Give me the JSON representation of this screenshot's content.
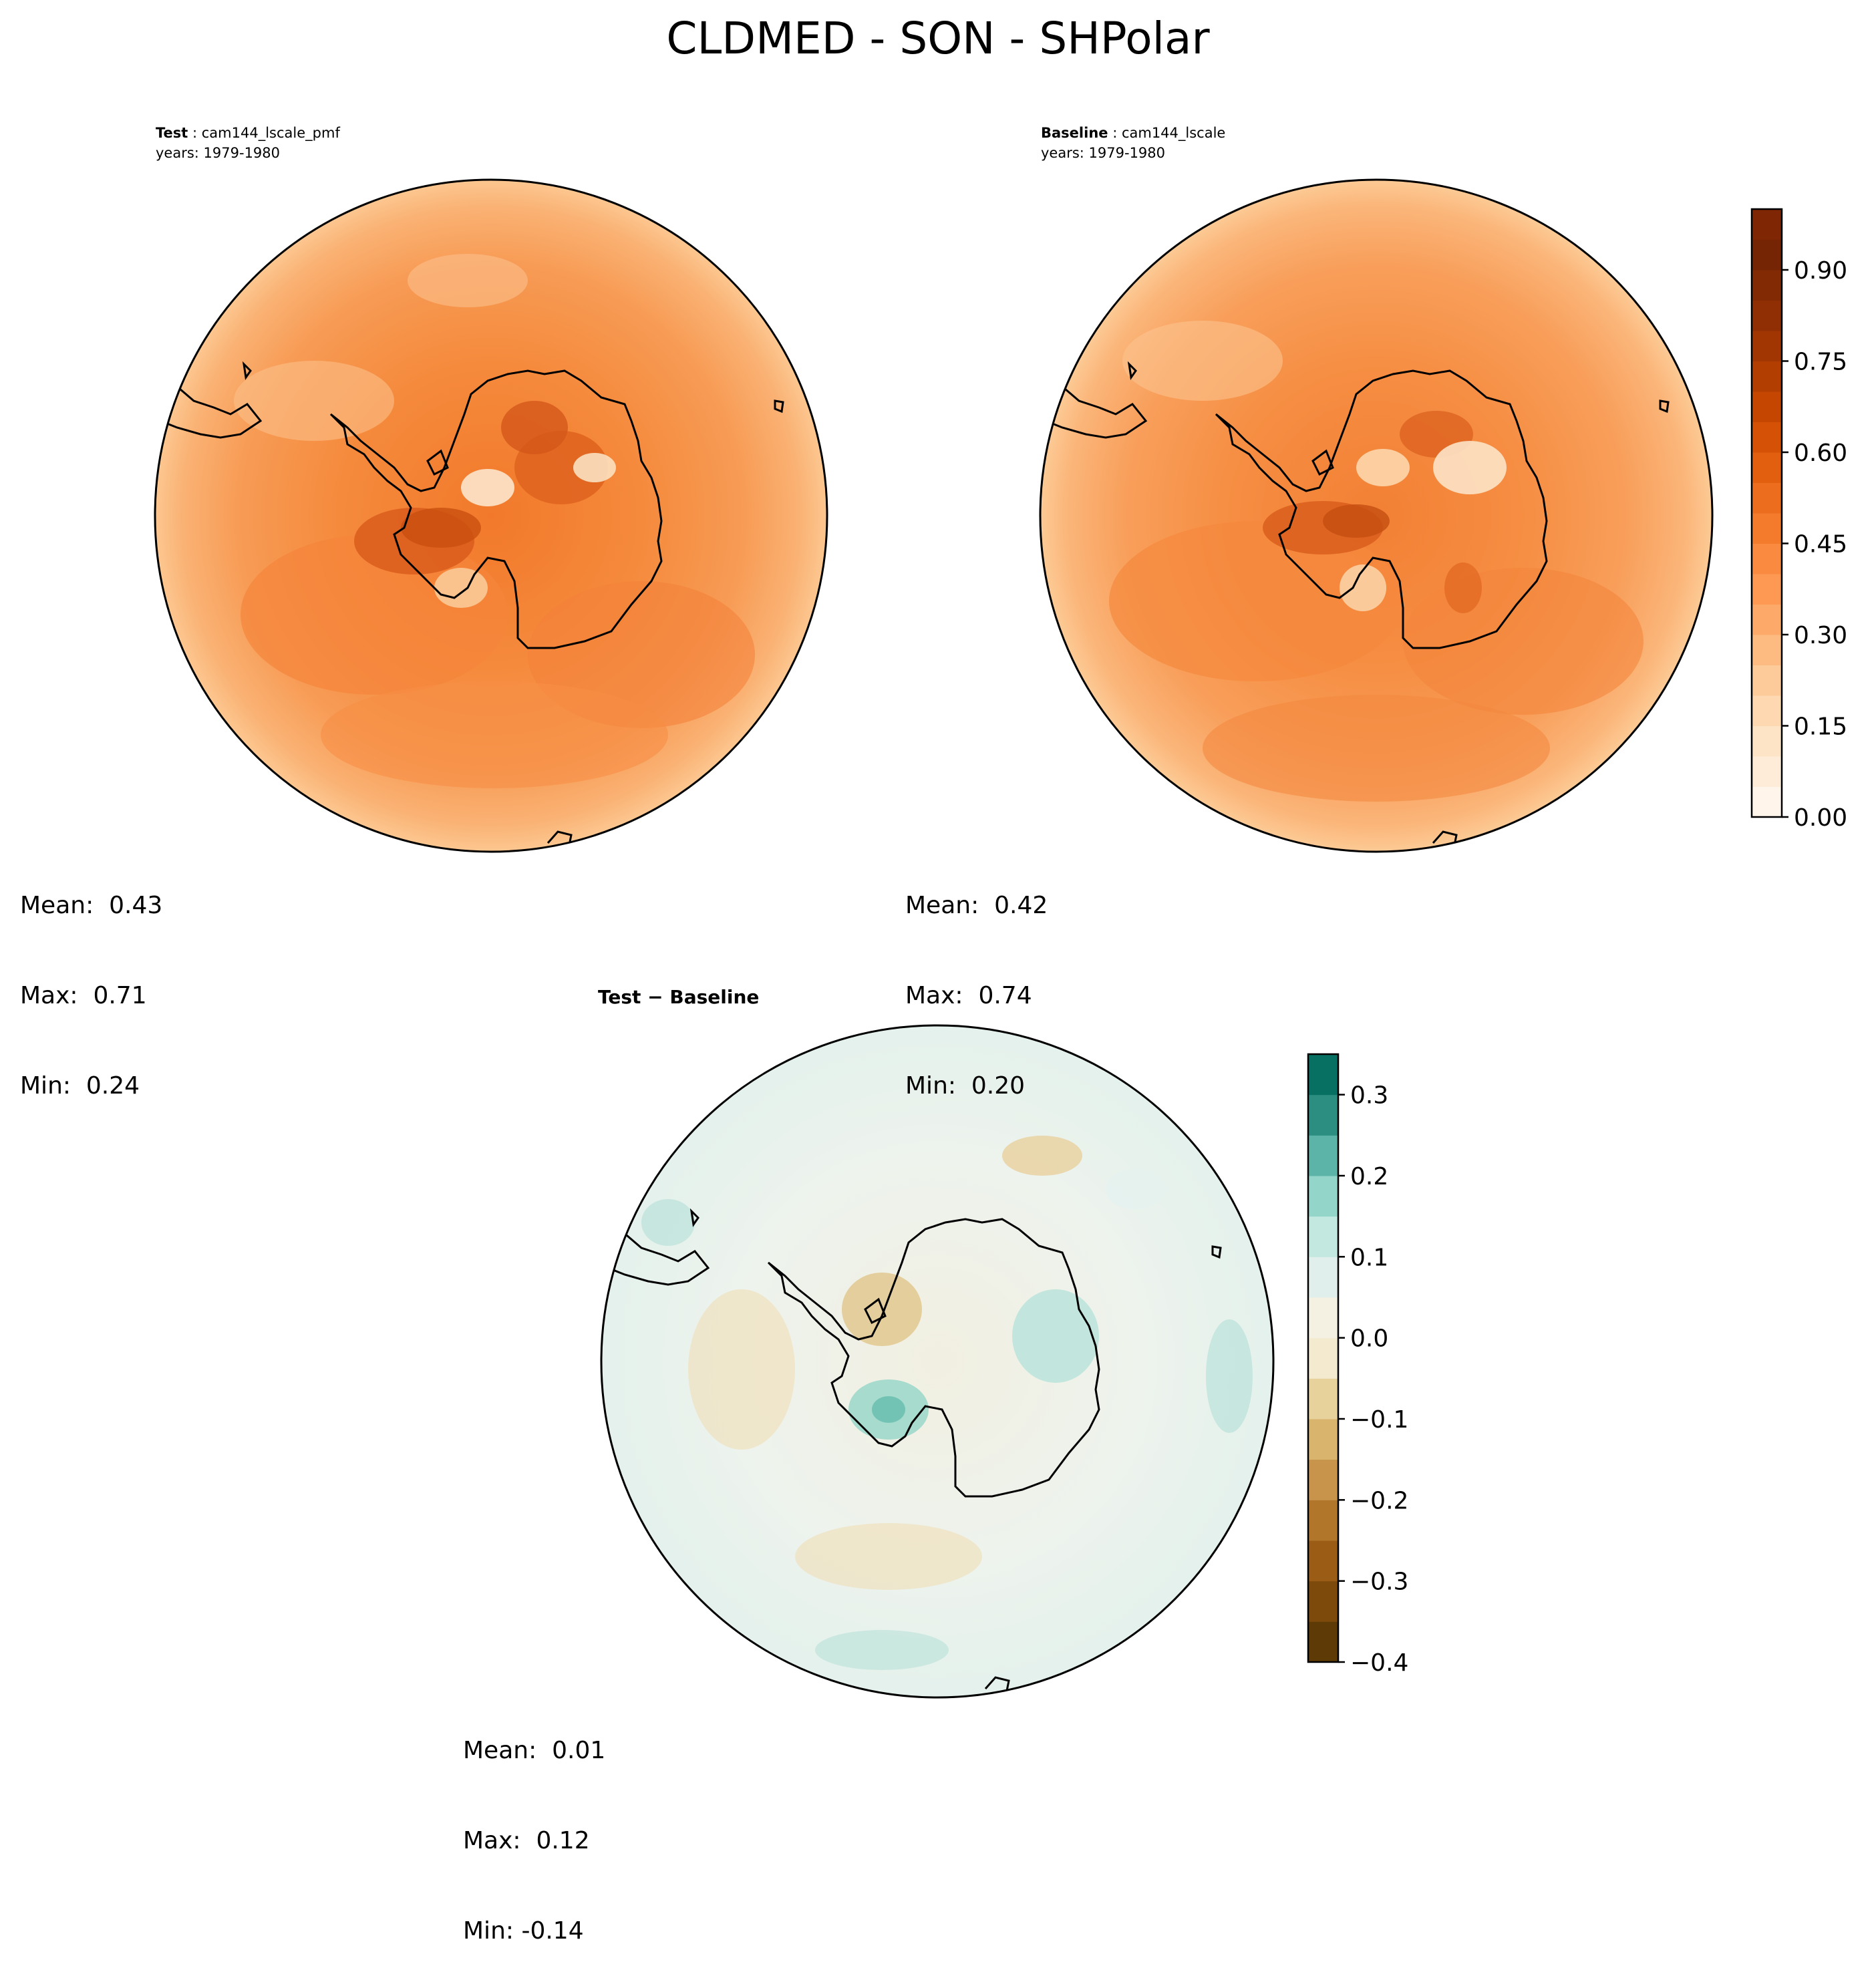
{
  "figure": {
    "title": "CLDMED - SON - SHPolar"
  },
  "panels": [
    {
      "id": "test",
      "label": "Test",
      "case": "cam144_lscale_pmf",
      "years": "years: 1979-1980",
      "stats": {
        "mean": "Mean:  0.43",
        "max": "Max:  0.71",
        "min": "Min:  0.24"
      },
      "values": {
        "mean": 0.43,
        "max": 0.71,
        "min": 0.24
      }
    },
    {
      "id": "baseline",
      "label": "Baseline",
      "case": "cam144_lscale",
      "years": "years: 1979-1980",
      "stats": {
        "mean": "Mean:  0.42",
        "max": "Max:  0.74",
        "min": "Min:  0.20"
      },
      "values": {
        "mean": 0.42,
        "max": 0.74,
        "min": 0.2
      }
    },
    {
      "id": "diff",
      "label": "Test − Baseline",
      "stats": {
        "mean": "Mean:  0.01",
        "max": "Max:  0.12",
        "min": "Min: -0.14"
      },
      "values": {
        "mean": 0.01,
        "max": 0.12,
        "min": -0.14
      }
    }
  ],
  "colorbars": {
    "main": {
      "colormap": "Oranges",
      "range": [
        0.0,
        1.0
      ],
      "levels": 20,
      "tick_labels": [
        "0.00",
        "0.15",
        "0.30",
        "0.45",
        "0.60",
        "0.75",
        "0.90"
      ],
      "tick_values": [
        0.0,
        0.15,
        0.3,
        0.45,
        0.6,
        0.75,
        0.9
      ],
      "colors": [
        "#fff5eb",
        "#feecd9",
        "#fee4c7",
        "#fdd8b1",
        "#fdcb9a",
        "#fdba81",
        "#fda96a",
        "#fd9953",
        "#f98a40",
        "#f47b2c",
        "#ec6d1d",
        "#e15f0f",
        "#d45105",
        "#c54601",
        "#b33e02",
        "#a13603",
        "#902f03",
        "#822a04",
        "#762504",
        "#7f2704"
      ]
    },
    "diff": {
      "colormap": "BrBG",
      "range": [
        -0.4,
        0.35
      ],
      "tick_labels": [
        "−0.4",
        "−0.3",
        "−0.2",
        "−0.1",
        "0.0",
        "0.1",
        "0.2",
        "0.3"
      ],
      "tick_values": [
        -0.4,
        -0.3,
        -0.2,
        -0.1,
        0.0,
        0.1,
        0.2,
        0.3
      ],
      "boundaries": [
        -0.4,
        -0.35,
        -0.3,
        -0.25,
        -0.2,
        -0.15,
        -0.1,
        -0.05,
        0.0,
        0.05,
        0.1,
        0.15,
        0.2,
        0.25,
        0.3,
        0.35
      ],
      "colors": [
        "#5e3a07",
        "#7d4a0b",
        "#9b5c15",
        "#b2762b",
        "#c8944b",
        "#d8b46d",
        "#e8d29b",
        "#f3ead0",
        "#f4f0e2",
        "#e0efec",
        "#c3e8e0",
        "#93d5c8",
        "#5cb4a8",
        "#2b8e80",
        "#077063",
        "#01473c"
      ]
    },
    "shading": {
      "test": "#f7944a",
      "baseline": "#f79a52",
      "diff": "#eef4ee"
    }
  }
}
